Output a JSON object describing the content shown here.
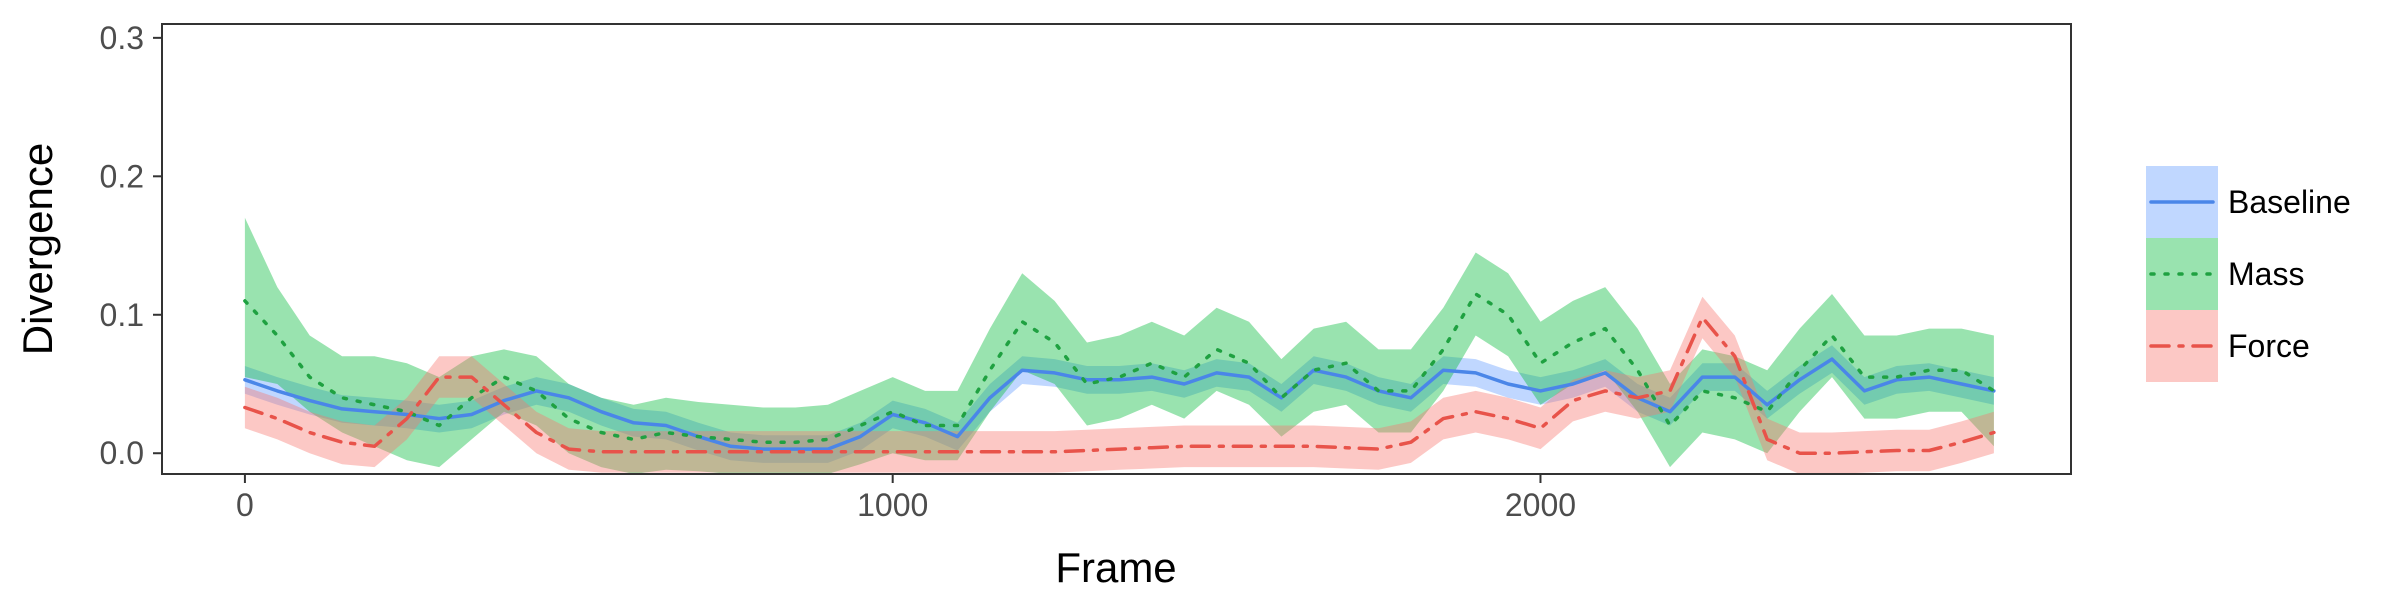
{
  "chart_data": {
    "type": "line",
    "xlabel": "Frame",
    "ylabel": "Divergence",
    "xlim": [
      -128,
      2819
    ],
    "ylim": [
      -0.015,
      0.31
    ],
    "xticks": [
      0,
      1000,
      2000
    ],
    "xtick_labels": [
      "0",
      "1000",
      "2000"
    ],
    "yticks": [
      0.0,
      0.1,
      0.2,
      0.3
    ],
    "ytick_labels": [
      "0.0",
      "0.1",
      "0.2",
      "0.3"
    ],
    "grid": false,
    "legend_position": "right",
    "x": [
      0,
      50,
      100,
      150,
      200,
      250,
      300,
      350,
      400,
      450,
      500,
      550,
      600,
      650,
      700,
      750,
      800,
      850,
      900,
      950,
      1000,
      1050,
      1100,
      1150,
      1200,
      1250,
      1300,
      1350,
      1400,
      1450,
      1500,
      1550,
      1600,
      1650,
      1700,
      1750,
      1800,
      1850,
      1900,
      1950,
      2000,
      2050,
      2100,
      2150,
      2200,
      2250,
      2300,
      2350,
      2400,
      2450,
      2500,
      2550,
      2600,
      2650,
      2700
    ],
    "series": [
      {
        "name": "Baseline",
        "color": "#619CFF",
        "line_color": "#4A86E8",
        "dash": "solid",
        "values": [
          0.053,
          0.045,
          0.038,
          0.032,
          0.03,
          0.028,
          0.025,
          0.028,
          0.038,
          0.045,
          0.04,
          0.03,
          0.022,
          0.02,
          0.012,
          0.005,
          0.003,
          0.003,
          0.003,
          0.012,
          0.028,
          0.022,
          0.012,
          0.04,
          0.06,
          0.058,
          0.053,
          0.053,
          0.055,
          0.05,
          0.058,
          0.055,
          0.04,
          0.06,
          0.055,
          0.045,
          0.04,
          0.06,
          0.058,
          0.05,
          0.045,
          0.05,
          0.058,
          0.04,
          0.03,
          0.055,
          0.055,
          0.035,
          0.053,
          0.068,
          0.045,
          0.053,
          0.055,
          0.05,
          0.045
        ],
        "lower": [
          0.043,
          0.035,
          0.028,
          0.022,
          0.02,
          0.018,
          0.015,
          0.018,
          0.028,
          0.035,
          0.03,
          0.02,
          0.012,
          0.01,
          0.002,
          -0.005,
          -0.007,
          -0.007,
          -0.007,
          0.002,
          0.018,
          0.012,
          0.002,
          0.03,
          0.05,
          0.048,
          0.043,
          0.043,
          0.045,
          0.04,
          0.048,
          0.045,
          0.03,
          0.05,
          0.045,
          0.035,
          0.03,
          0.05,
          0.048,
          0.04,
          0.035,
          0.04,
          0.048,
          0.03,
          0.02,
          0.045,
          0.045,
          0.025,
          0.043,
          0.058,
          0.035,
          0.043,
          0.045,
          0.04,
          0.035
        ],
        "upper": [
          0.063,
          0.055,
          0.048,
          0.042,
          0.04,
          0.038,
          0.035,
          0.038,
          0.048,
          0.055,
          0.05,
          0.04,
          0.032,
          0.03,
          0.022,
          0.015,
          0.013,
          0.013,
          0.013,
          0.022,
          0.038,
          0.032,
          0.022,
          0.05,
          0.07,
          0.068,
          0.063,
          0.063,
          0.065,
          0.06,
          0.068,
          0.065,
          0.05,
          0.07,
          0.065,
          0.055,
          0.05,
          0.07,
          0.068,
          0.06,
          0.055,
          0.06,
          0.068,
          0.05,
          0.04,
          0.065,
          0.065,
          0.045,
          0.063,
          0.078,
          0.055,
          0.063,
          0.065,
          0.06,
          0.055
        ]
      },
      {
        "name": "Mass",
        "color": "#00BA38",
        "line_color": "#1FA141",
        "dash": "dotted",
        "values": [
          0.11,
          0.085,
          0.055,
          0.04,
          0.035,
          0.03,
          0.02,
          0.04,
          0.055,
          0.045,
          0.025,
          0.015,
          0.01,
          0.015,
          0.012,
          0.01,
          0.008,
          0.008,
          0.01,
          0.02,
          0.03,
          0.02,
          0.02,
          0.06,
          0.095,
          0.08,
          0.05,
          0.055,
          0.065,
          0.055,
          0.075,
          0.065,
          0.04,
          0.06,
          0.065,
          0.045,
          0.045,
          0.075,
          0.115,
          0.1,
          0.065,
          0.08,
          0.09,
          0.06,
          0.02,
          0.045,
          0.04,
          0.03,
          0.06,
          0.085,
          0.055,
          0.055,
          0.06,
          0.06,
          0.045
        ],
        "lower": [
          0.055,
          0.05,
          0.03,
          0.015,
          0.005,
          -0.005,
          -0.01,
          0.01,
          0.03,
          0.02,
          0.0,
          -0.01,
          -0.015,
          -0.012,
          -0.013,
          -0.015,
          -0.015,
          -0.015,
          -0.015,
          -0.008,
          0.0,
          -0.005,
          -0.005,
          0.03,
          0.06,
          0.05,
          0.02,
          0.025,
          0.035,
          0.025,
          0.045,
          0.035,
          0.012,
          0.03,
          0.035,
          0.015,
          0.015,
          0.045,
          0.085,
          0.07,
          0.035,
          0.05,
          0.06,
          0.03,
          -0.01,
          0.015,
          0.01,
          0.0,
          0.03,
          0.055,
          0.025,
          0.025,
          0.03,
          0.03,
          0.005
        ],
        "upper": [
          0.17,
          0.12,
          0.085,
          0.07,
          0.07,
          0.065,
          0.055,
          0.07,
          0.075,
          0.07,
          0.05,
          0.04,
          0.035,
          0.04,
          0.037,
          0.035,
          0.033,
          0.033,
          0.035,
          0.045,
          0.055,
          0.045,
          0.045,
          0.09,
          0.13,
          0.11,
          0.08,
          0.085,
          0.095,
          0.085,
          0.105,
          0.095,
          0.068,
          0.09,
          0.095,
          0.075,
          0.075,
          0.105,
          0.145,
          0.13,
          0.095,
          0.11,
          0.12,
          0.09,
          0.05,
          0.075,
          0.07,
          0.06,
          0.09,
          0.115,
          0.085,
          0.085,
          0.09,
          0.09,
          0.085
        ]
      },
      {
        "name": "Force",
        "color": "#F8766D",
        "line_color": "#E8534A",
        "dash": "dashdot",
        "values": [
          0.033,
          0.025,
          0.015,
          0.008,
          0.005,
          0.025,
          0.055,
          0.055,
          0.035,
          0.015,
          0.003,
          0.001,
          0.001,
          0.001,
          0.001,
          0.001,
          0.001,
          0.001,
          0.001,
          0.001,
          0.001,
          0.001,
          0.001,
          0.001,
          0.001,
          0.001,
          0.002,
          0.003,
          0.004,
          0.005,
          0.005,
          0.005,
          0.005,
          0.005,
          0.004,
          0.003,
          0.008,
          0.025,
          0.03,
          0.025,
          0.018,
          0.038,
          0.045,
          0.04,
          0.045,
          0.098,
          0.07,
          0.01,
          0.0,
          0.0,
          0.001,
          0.002,
          0.002,
          0.008,
          0.015
        ],
        "lower": [
          0.018,
          0.01,
          0.0,
          -0.008,
          -0.01,
          0.01,
          0.04,
          0.04,
          0.02,
          0.0,
          -0.012,
          -0.014,
          -0.014,
          -0.014,
          -0.014,
          -0.014,
          -0.014,
          -0.014,
          -0.014,
          -0.014,
          -0.014,
          -0.014,
          -0.014,
          -0.014,
          -0.014,
          -0.014,
          -0.013,
          -0.012,
          -0.011,
          -0.01,
          -0.01,
          -0.01,
          -0.01,
          -0.01,
          -0.011,
          -0.012,
          -0.007,
          0.01,
          0.015,
          0.01,
          0.003,
          0.023,
          0.03,
          0.025,
          0.03,
          0.083,
          0.055,
          -0.005,
          -0.015,
          -0.015,
          -0.014,
          -0.013,
          -0.013,
          -0.007,
          0.0
        ],
        "upper": [
          0.048,
          0.04,
          0.03,
          0.023,
          0.02,
          0.04,
          0.07,
          0.07,
          0.05,
          0.03,
          0.018,
          0.016,
          0.016,
          0.016,
          0.016,
          0.016,
          0.016,
          0.016,
          0.016,
          0.016,
          0.016,
          0.016,
          0.016,
          0.016,
          0.016,
          0.016,
          0.017,
          0.018,
          0.019,
          0.02,
          0.02,
          0.02,
          0.02,
          0.02,
          0.019,
          0.018,
          0.023,
          0.04,
          0.045,
          0.04,
          0.033,
          0.053,
          0.06,
          0.055,
          0.06,
          0.113,
          0.085,
          0.025,
          0.015,
          0.015,
          0.016,
          0.017,
          0.017,
          0.023,
          0.03
        ]
      }
    ]
  }
}
